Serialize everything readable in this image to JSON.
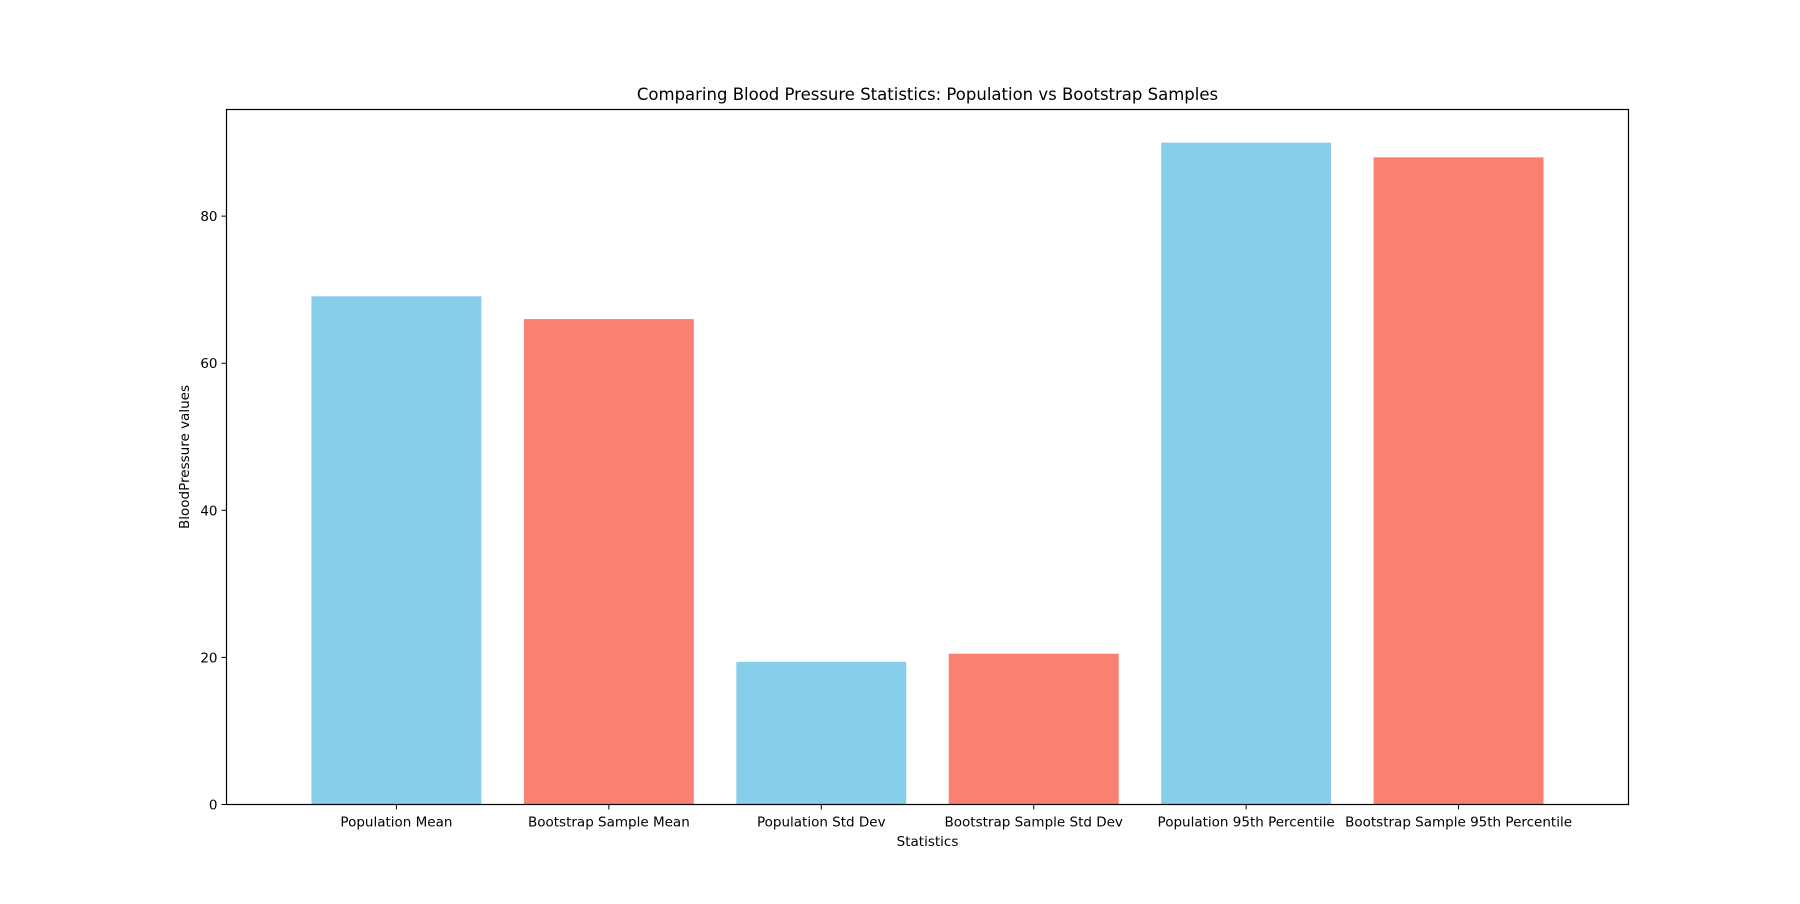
{
  "chart_data": {
    "type": "bar",
    "title": "Comparing Blood Pressure Statistics: Population vs Bootstrap Samples",
    "xlabel": "Statistics",
    "ylabel": "BloodPressure values",
    "categories": [
      "Population Mean",
      "Bootstrap Sample Mean",
      "Population Std Dev",
      "Bootstrap Sample Std Dev",
      "Population 95th Percentile",
      "Bootstrap Sample 95th Percentile"
    ],
    "values": [
      69.1,
      66.0,
      19.4,
      20.5,
      90.0,
      88.0
    ],
    "bar_colors": [
      "#87CEEB",
      "#FA8072",
      "#87CEEB",
      "#FA8072",
      "#87CEEB",
      "#FA8072"
    ],
    "ylim": [
      0,
      94.5
    ],
    "yticks": [
      0,
      20,
      40,
      60,
      80
    ],
    "grid": false,
    "legend": null
  }
}
